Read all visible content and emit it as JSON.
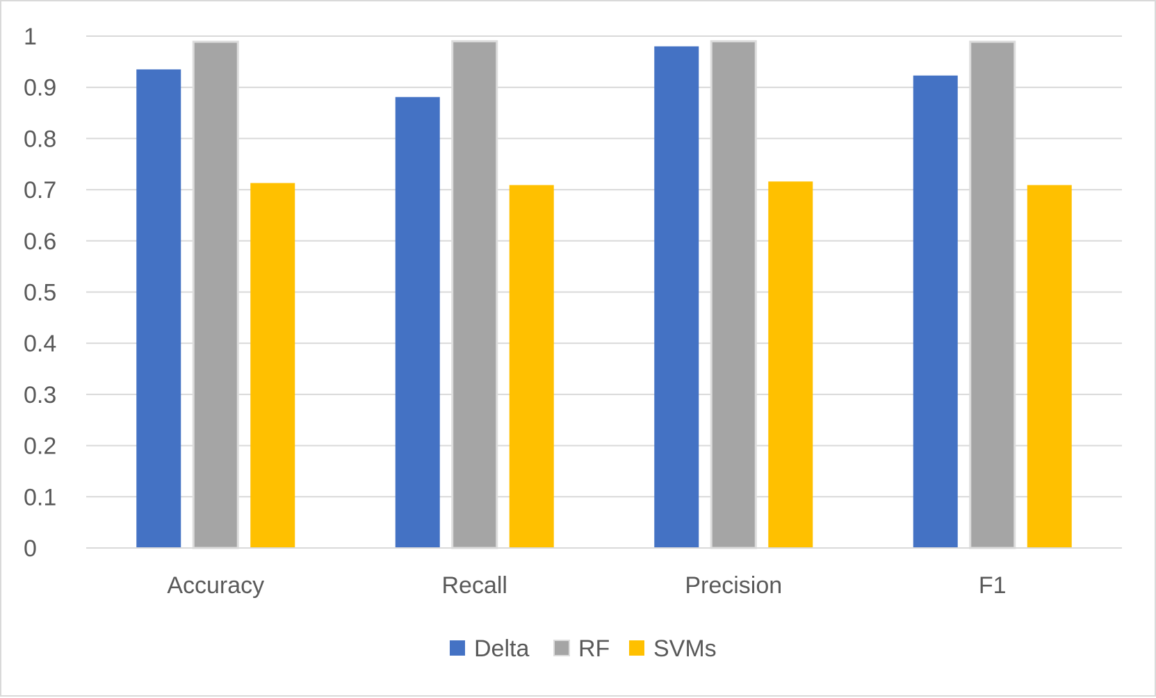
{
  "chart_data": {
    "type": "bar",
    "title": "",
    "xlabel": "",
    "ylabel": "",
    "categories": [
      "Accuracy",
      "Recall",
      "Precision",
      "F1"
    ],
    "series": [
      {
        "name": "Delta",
        "color": "#4472c4",
        "values": [
          0.935,
          0.881,
          0.98,
          0.923
        ]
      },
      {
        "name": "RF",
        "color": "#a5a5a5",
        "values": [
          0.989,
          0.99,
          0.99,
          0.989
        ]
      },
      {
        "name": "SVMs",
        "color": "#ffc000",
        "values": [
          0.713,
          0.709,
          0.716,
          0.709
        ]
      }
    ],
    "ylim": [
      0,
      1
    ],
    "yticks": [
      "0",
      "0.1",
      "0.2",
      "0.3",
      "0.4",
      "0.5",
      "0.6",
      "0.7",
      "0.8",
      "0.9",
      "1"
    ],
    "grid": true,
    "legend_position": "bottom",
    "gridline_color": "#d9d9d9",
    "text_color": "#595959"
  }
}
